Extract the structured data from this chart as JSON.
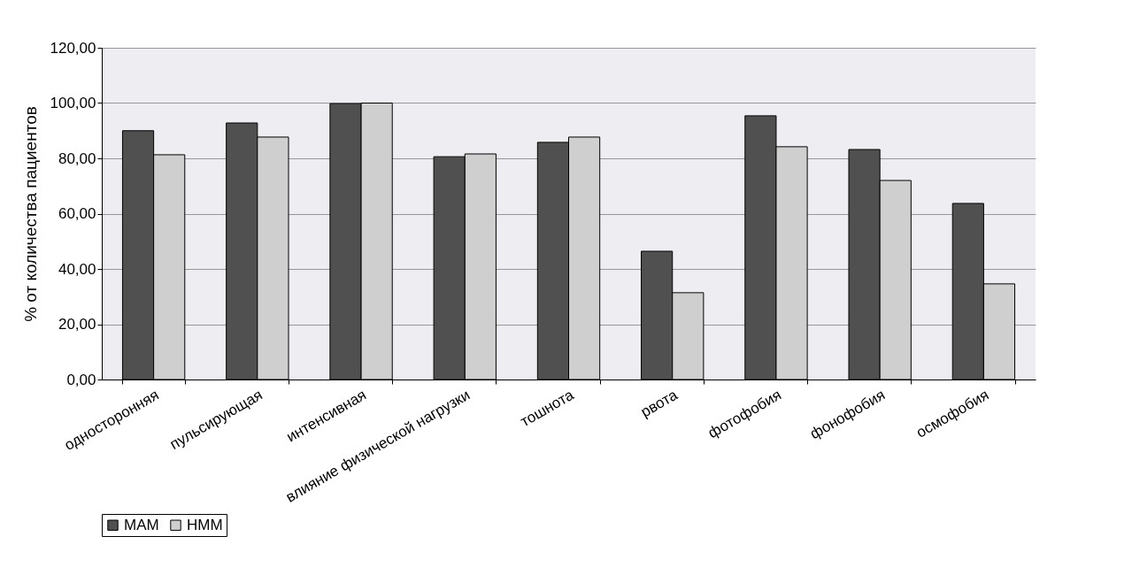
{
  "chart_data": {
    "type": "bar",
    "ylabel": "% от количества пациентов",
    "categories": [
      "односторонняя",
      "пульсирующая",
      "интенсивная",
      "влияние физической нагрузки",
      "тошнота",
      "рвота",
      "фотофобия",
      "фонофобия",
      "осмофобия"
    ],
    "series": [
      {
        "name": "МАМ",
        "color": "#505050",
        "values": [
          90,
          92.8,
          99.8,
          80.6,
          85.8,
          46.4,
          95.4,
          83.2,
          63.7
        ]
      },
      {
        "name": "НММ",
        "color": "#cfcfcf",
        "values": [
          81.3,
          87.7,
          100,
          81.6,
          87.7,
          31.4,
          84.2,
          72,
          34.6
        ]
      }
    ],
    "ylim": [
      0,
      120
    ],
    "yticks": [
      {
        "value": 0,
        "label": "0,00"
      },
      {
        "value": 20,
        "label": "20,00"
      },
      {
        "value": 40,
        "label": "40,00"
      },
      {
        "value": 60,
        "label": "60,00"
      },
      {
        "value": 80,
        "label": "80,00"
      },
      {
        "value": 100,
        "label": "100,00"
      },
      {
        "value": 120,
        "label": "120,00"
      }
    ],
    "grid": "y",
    "legend": "bottom"
  }
}
